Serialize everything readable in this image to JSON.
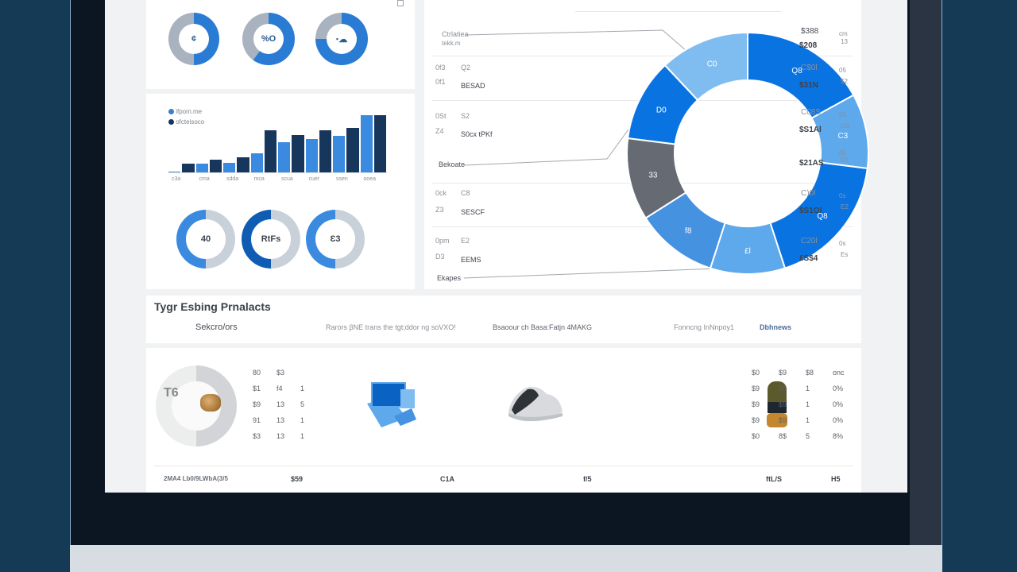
{
  "window": {
    "frame_color": "#0c1622",
    "background": "#143a56"
  },
  "kpi_donuts_top": [
    {
      "label": "¢",
      "fill": 0.5,
      "color": "#2a7bd4"
    },
    {
      "label": "%O",
      "fill": 0.6,
      "color": "#2a7bd4"
    },
    {
      "label": "ꞏ☁",
      "fill": 0.75,
      "color": "#2a7bd4"
    }
  ],
  "bar_chart_legend": [
    {
      "label": "ifpom.me",
      "color": "#3a7fc8"
    },
    {
      "label": "ofcteisoco",
      "color": "#16365c"
    }
  ],
  "kpi_donuts_bottom": [
    {
      "label": "40",
      "fill": 0.5
    },
    {
      "label": "RtFs",
      "fill": 0.5
    },
    {
      "label": "Ɛ3",
      "fill": 0.5
    }
  ],
  "donut_breakdown": {
    "top_header": "",
    "left_labels": [
      {
        "title": "Ctrlatiea",
        "sub": "tekk.m"
      },
      {
        "col1": "0f3",
        "col2": "Q2",
        "row2": "0f1",
        "name": "BESAD"
      },
      {
        "col1": "0St",
        "col2": "S2",
        "row2": "Z4",
        "name": "S0cx tPKf"
      },
      {
        "title": "Bekoate"
      },
      {
        "col1": "0ck",
        "col2": "C8",
        "row2": "Z3",
        "name": "SESCF"
      },
      {
        "col1": "0pm",
        "col2": "E2",
        "row2": "D3",
        "name": "EEMS"
      },
      {
        "title": "Ekapes"
      }
    ],
    "right_values": [
      {
        "a": "$388",
        "b": "$208",
        "c": "cm",
        "d": "13"
      },
      {
        "a": "C$0l",
        "b": "$31N",
        "c": "05",
        "d": "$2"
      },
      {
        "a": "C08S",
        "b": "$S1Al",
        "c": "05",
        "d": "US"
      },
      {
        "a": "",
        "b": "$21AS",
        "c": "05",
        "d": "Es"
      },
      {
        "a": "C)0l",
        "b": "$S1Ol",
        "c": "0s",
        "d": "E2"
      },
      {
        "a": "C20l",
        "b": "£S$4",
        "c": "0s",
        "d": "Es"
      }
    ]
  },
  "chart_data": [
    {
      "type": "bar",
      "title": "",
      "categories": [
        "c3a",
        "cma",
        "sdda",
        "mca",
        "scua",
        "cuer",
        "ssen",
        "ooea"
      ],
      "series": [
        {
          "name": "ifpom.me",
          "values": [
            2,
            15,
            17,
            33,
            53,
            58,
            64,
            100
          ]
        },
        {
          "name": "ofcteisoco",
          "values": [
            15,
            22,
            26,
            74,
            65,
            74,
            78,
            100
          ]
        }
      ],
      "xlabel": "",
      "ylabel": "",
      "ylim": [
        0,
        100
      ],
      "grid": true,
      "legend_position": "top-left"
    },
    {
      "type": "pie",
      "title": "",
      "donut": true,
      "segments": [
        {
          "label": "Q8",
          "value": 17,
          "color": "#0a73e2"
        },
        {
          "label": "C3",
          "value": 10,
          "color": "#5ea8ec"
        },
        {
          "label": "Q8",
          "value": 18,
          "color": "#0a73e2"
        },
        {
          "label": "£l",
          "value": 10,
          "color": "#5ea8ec"
        },
        {
          "label": "f8",
          "value": 11,
          "color": "#4592e0"
        },
        {
          "label": "33",
          "value": 11,
          "color": "#666a72"
        },
        {
          "label": "D0",
          "value": 11,
          "color": "#0a73e2"
        },
        {
          "label": "C0",
          "value": 12,
          "color": "#7fbdf0"
        }
      ]
    }
  ],
  "top_selling": {
    "title": "Tygr Esbing Prnalacts",
    "tabs": [
      "Sekcro/ors",
      "Rarors   βNE trans the tgt;ddor ng soVXO!",
      "Bsaoour ch Basa:Fatjn 4MAKG",
      "Fonncng InNnpoy1",
      "Dbhnews"
    ],
    "left_table": [
      [
        "80",
        "$3",
        ""
      ],
      [
        "$1",
        "f4",
        "1"
      ],
      [
        "$9",
        "13",
        "5"
      ],
      [
        "91",
        "13",
        "1"
      ],
      [
        "$3",
        "13",
        "1"
      ]
    ],
    "donut_label": "T6",
    "right_table": [
      [
        "$0",
        "$9",
        "$8",
        "onc"
      ],
      [
        "$9",
        "80",
        "1",
        "0%"
      ],
      [
        "$9",
        "$9",
        "1",
        "0%"
      ],
      [
        "$9",
        "$9",
        "1",
        "0%"
      ],
      [
        "$0",
        "8$",
        "5",
        "8%"
      ]
    ],
    "footer": [
      "2MA4 Lb0/9LWbA(3/5",
      "$59",
      "C1A",
      "f/5",
      "ftL/S",
      "H5"
    ]
  }
}
